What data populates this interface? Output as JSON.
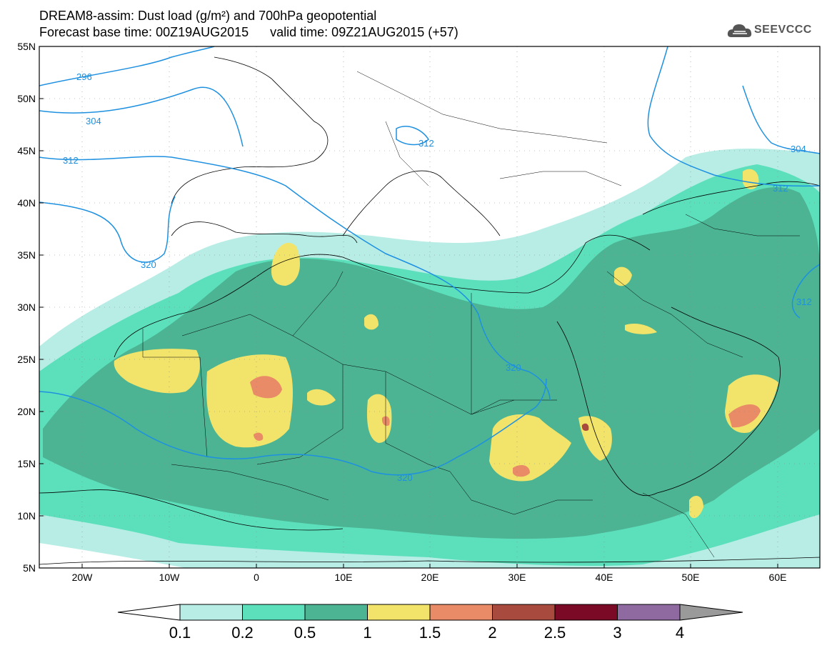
{
  "header": {
    "title_line1": "DREAM8-assim: Dust load (g/m²) and 700hPa geopotential",
    "title_line2": "Forecast base time: 00Z19AUG2015      valid time: 09Z21AUG2015 (+57)",
    "logo_text": "SEEVCCC"
  },
  "map": {
    "lat_labels": [
      "55N",
      "50N",
      "45N",
      "40N",
      "35N",
      "30N",
      "25N",
      "20N",
      "15N",
      "10N",
      "5N"
    ],
    "lon_labels": [
      "20W",
      "10W",
      "0",
      "10E",
      "20E",
      "30E",
      "40E",
      "50E",
      "60E"
    ],
    "contour_labels": [
      "296",
      "304",
      "312",
      "320",
      "312",
      "320",
      "320",
      "304",
      "312",
      "312"
    ],
    "contour_color": "#1e90e0"
  },
  "colorbar": {
    "ticks": [
      "0.1",
      "0.2",
      "0.5",
      "1",
      "1.5",
      "2",
      "2.5",
      "3",
      "4"
    ],
    "colors": [
      "#ffffff",
      "#b8ede6",
      "#5ce0bc",
      "#4cb493",
      "#f2e46a",
      "#e88b66",
      "#a84a3e",
      "#7a0a26",
      "#8f6aa0",
      "#9a9a9a"
    ]
  }
}
